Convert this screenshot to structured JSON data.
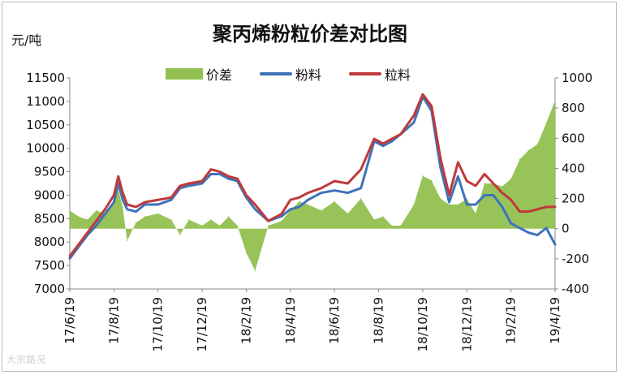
{
  "chart_data": {
    "type": "line",
    "title": "聚丙烯粉粒价差对比图",
    "ylabel": "元/吨",
    "colors": {
      "spread": "#92c050",
      "powder": "#3e73b8",
      "granule": "#c0393b"
    },
    "legend": {
      "placement": "top",
      "entries": [
        "价差",
        "粉料",
        "粒料"
      ]
    },
    "x_ticks": [
      "17/6/19",
      "17/8/19",
      "17/10/19",
      "17/12/19",
      "18/2/19",
      "18/4/19",
      "18/6/19",
      "18/8/19",
      "18/10/19",
      "18/12/19",
      "19/2/19",
      "19/4/19"
    ],
    "y_left": {
      "min": 7000,
      "max": 11500,
      "ticks": [
        "7000",
        "7500",
        "8000",
        "8500",
        "9000",
        "9500",
        "10000",
        "10500",
        "11000",
        "11500"
      ]
    },
    "y_right": {
      "min": -400,
      "max": 1000,
      "ticks": [
        "-400",
        "-200",
        "0",
        "200",
        "400",
        "600",
        "800",
        "1000"
      ]
    },
    "x_index_range": [
      0,
      11
    ],
    "series": [
      {
        "name": "粒料",
        "axis": "left",
        "x": [
          0,
          0.2,
          0.4,
          0.6,
          0.8,
          1.0,
          1.1,
          1.2,
          1.3,
          1.5,
          1.7,
          2.0,
          2.3,
          2.5,
          2.7,
          3.0,
          3.2,
          3.4,
          3.6,
          3.8,
          4.0,
          4.2,
          4.5,
          4.8,
          5.0,
          5.2,
          5.4,
          5.7,
          6.0,
          6.3,
          6.6,
          6.9,
          7.1,
          7.3,
          7.5,
          7.8,
          8.0,
          8.2,
          8.4,
          8.6,
          8.8,
          9.0,
          9.2,
          9.4,
          9.6,
          9.8,
          10.0,
          10.2,
          10.4,
          10.6,
          10.8,
          11.0
        ],
        "y": [
          7700,
          7950,
          8200,
          8450,
          8700,
          9000,
          9400,
          9050,
          8800,
          8750,
          8850,
          8900,
          8950,
          9200,
          9250,
          9300,
          9550,
          9500,
          9400,
          9350,
          9000,
          8800,
          8450,
          8600,
          8900,
          8950,
          9050,
          9150,
          9300,
          9250,
          9550,
          10200,
          10100,
          10200,
          10300,
          10700,
          11150,
          10900,
          9800,
          9000,
          9700,
          9300,
          9200,
          9450,
          9250,
          9050,
          8900,
          8650,
          8650,
          8700,
          8750,
          8750
        ]
      },
      {
        "name": "粉料",
        "axis": "left",
        "x": [
          0,
          0.2,
          0.4,
          0.6,
          0.8,
          1.0,
          1.1,
          1.2,
          1.3,
          1.5,
          1.7,
          2.0,
          2.3,
          2.5,
          2.7,
          3.0,
          3.2,
          3.4,
          3.6,
          3.8,
          4.0,
          4.2,
          4.5,
          4.8,
          5.0,
          5.2,
          5.4,
          5.7,
          6.0,
          6.3,
          6.6,
          6.9,
          7.1,
          7.3,
          7.5,
          7.8,
          8.0,
          8.2,
          8.4,
          8.6,
          8.8,
          9.0,
          9.2,
          9.4,
          9.6,
          9.8,
          10.0,
          10.2,
          10.4,
          10.6,
          10.8,
          11.0
        ],
        "y": [
          7650,
          7900,
          8150,
          8350,
          8600,
          8850,
          9250,
          8900,
          8700,
          8650,
          8800,
          8800,
          8900,
          9150,
          9200,
          9250,
          9450,
          9450,
          9350,
          9300,
          8950,
          8700,
          8450,
          8550,
          8700,
          8750,
          8900,
          9050,
          9100,
          9050,
          9150,
          10150,
          10050,
          10150,
          10300,
          10550,
          11100,
          10800,
          9600,
          8850,
          9400,
          8800,
          8800,
          9000,
          9000,
          8750,
          8400,
          8300,
          8200,
          8150,
          8300,
          7950
        ]
      },
      {
        "name": "价差",
        "axis": "right",
        "type": "area",
        "x": [
          0,
          0.2,
          0.4,
          0.6,
          0.8,
          1.0,
          1.1,
          1.2,
          1.3,
          1.5,
          1.7,
          2.0,
          2.3,
          2.5,
          2.7,
          3.0,
          3.2,
          3.4,
          3.6,
          3.8,
          4.0,
          4.2,
          4.5,
          4.8,
          5.0,
          5.2,
          5.4,
          5.7,
          6.0,
          6.3,
          6.6,
          6.9,
          7.1,
          7.3,
          7.5,
          7.8,
          8.0,
          8.2,
          8.4,
          8.6,
          8.8,
          9.0,
          9.2,
          9.4,
          9.6,
          9.8,
          10.0,
          10.2,
          10.4,
          10.6,
          10.8,
          11.0
        ],
        "y": [
          120,
          80,
          60,
          120,
          100,
          160,
          260,
          140,
          -80,
          40,
          80,
          100,
          60,
          -40,
          60,
          20,
          60,
          20,
          80,
          20,
          -160,
          -280,
          20,
          50,
          120,
          180,
          160,
          120,
          180,
          100,
          200,
          60,
          80,
          20,
          20,
          160,
          350,
          320,
          200,
          160,
          160,
          200,
          100,
          300,
          300,
          280,
          330,
          460,
          520,
          560,
          700,
          850
        ]
      }
    ]
  },
  "watermark": "大宗路况"
}
